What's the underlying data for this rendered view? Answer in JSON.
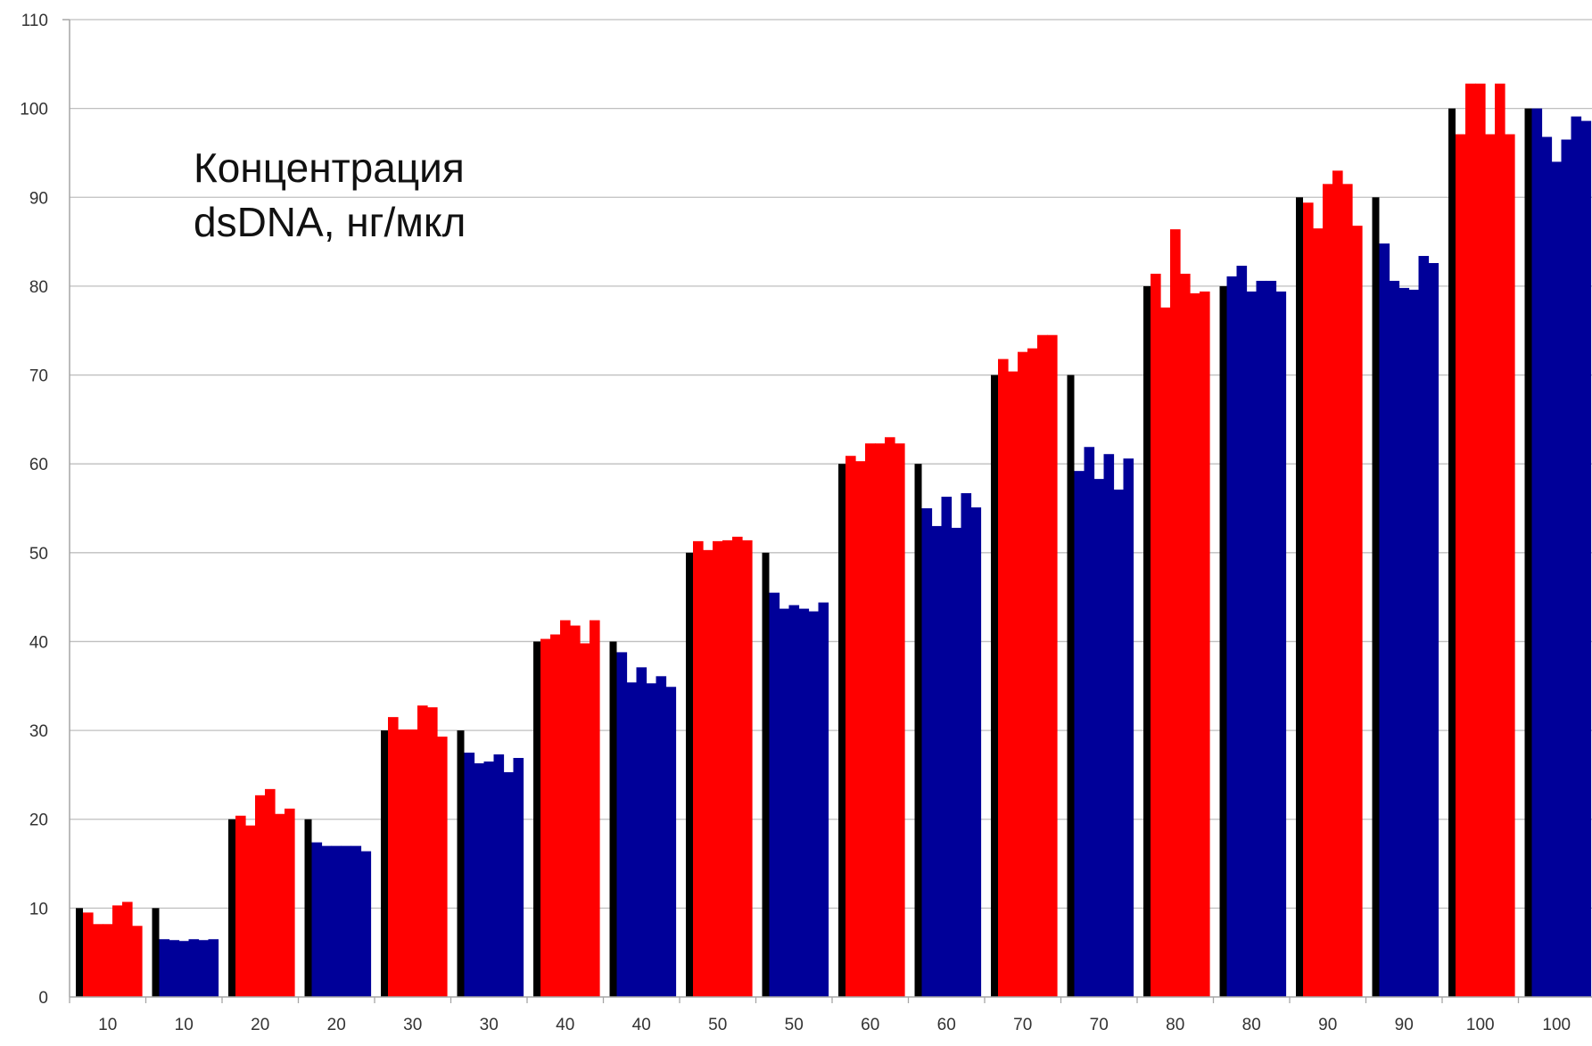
{
  "chart_data": {
    "type": "bar",
    "title_lines": [
      "Концентрация",
      "dsDNA, нг/мкл"
    ],
    "ylim": [
      0,
      110
    ],
    "yticks": [
      "0",
      "10",
      "20",
      "30",
      "40",
      "50",
      "60",
      "70",
      "80",
      "90",
      "100",
      "110"
    ],
    "grid": true,
    "colors": {
      "reference": "#000000",
      "red_group": "#ff0000",
      "blue_group": "#000099",
      "grid": "#bfbfbf",
      "axis": "#a6a6a6"
    },
    "groups": [
      {
        "category": "10",
        "color_key": "red_group",
        "reference": 10,
        "values": [
          9.5,
          8.2,
          8.2,
          10.3,
          10.7,
          8.0
        ]
      },
      {
        "category": "10",
        "color_key": "blue_group",
        "reference": 10,
        "values": [
          6.5,
          6.4,
          6.3,
          6.5,
          6.4,
          6.5
        ]
      },
      {
        "category": "20",
        "color_key": "red_group",
        "reference": 20,
        "values": [
          20.4,
          19.3,
          22.7,
          23.4,
          20.6,
          21.2
        ]
      },
      {
        "category": "20",
        "color_key": "blue_group",
        "reference": 20,
        "values": [
          17.4,
          17.0,
          17.0,
          17.0,
          17.0,
          16.4
        ]
      },
      {
        "category": "30",
        "color_key": "red_group",
        "reference": 30,
        "values": [
          31.5,
          30.1,
          30.1,
          32.8,
          32.6,
          29.3
        ]
      },
      {
        "category": "30",
        "color_key": "blue_group",
        "reference": 30,
        "values": [
          27.5,
          26.3,
          26.5,
          27.3,
          25.3,
          26.9
        ]
      },
      {
        "category": "40",
        "color_key": "red_group",
        "reference": 40,
        "values": [
          40.3,
          40.8,
          42.4,
          41.8,
          39.8,
          42.4
        ]
      },
      {
        "category": "40",
        "color_key": "blue_group",
        "reference": 40,
        "values": [
          38.8,
          35.4,
          37.1,
          35.3,
          36.1,
          34.9
        ]
      },
      {
        "category": "50",
        "color_key": "red_group",
        "reference": 50,
        "values": [
          51.3,
          50.3,
          51.3,
          51.4,
          51.8,
          51.4
        ]
      },
      {
        "category": "50",
        "color_key": "blue_group",
        "reference": 50,
        "values": [
          45.5,
          43.7,
          44.1,
          43.7,
          43.4,
          44.4
        ]
      },
      {
        "category": "60",
        "color_key": "red_group",
        "reference": 60,
        "values": [
          60.9,
          60.3,
          62.3,
          62.3,
          63.0,
          62.3
        ]
      },
      {
        "category": "60",
        "color_key": "blue_group",
        "reference": 60,
        "values": [
          55.0,
          53.0,
          56.3,
          52.8,
          56.7,
          55.1
        ]
      },
      {
        "category": "70",
        "color_key": "red_group",
        "reference": 70,
        "values": [
          71.8,
          70.4,
          72.6,
          73.0,
          74.5,
          74.5
        ]
      },
      {
        "category": "70",
        "color_key": "blue_group",
        "reference": 70,
        "values": [
          59.2,
          61.9,
          58.3,
          61.1,
          57.1,
          60.6
        ]
      },
      {
        "category": "80",
        "color_key": "red_group",
        "reference": 80,
        "values": [
          81.4,
          77.6,
          86.4,
          81.4,
          79.2,
          79.4
        ]
      },
      {
        "category": "80",
        "color_key": "blue_group",
        "reference": 80,
        "values": [
          81.1,
          82.3,
          79.4,
          80.6,
          80.6,
          79.4
        ]
      },
      {
        "category": "90",
        "color_key": "red_group",
        "reference": 90,
        "values": [
          89.4,
          86.5,
          91.5,
          93.0,
          91.5,
          86.8
        ]
      },
      {
        "category": "90",
        "color_key": "blue_group",
        "reference": 90,
        "values": [
          84.8,
          80.6,
          79.8,
          79.6,
          83.4,
          82.6
        ]
      },
      {
        "category": "100",
        "color_key": "red_group",
        "reference": 100,
        "values": [
          97.1,
          102.8,
          102.8,
          97.1,
          102.8,
          97.1
        ]
      },
      {
        "category": "100",
        "color_key": "blue_group",
        "reference": 100,
        "values": [
          100.0,
          96.8,
          94.0,
          96.5,
          99.1,
          98.6
        ]
      }
    ]
  }
}
